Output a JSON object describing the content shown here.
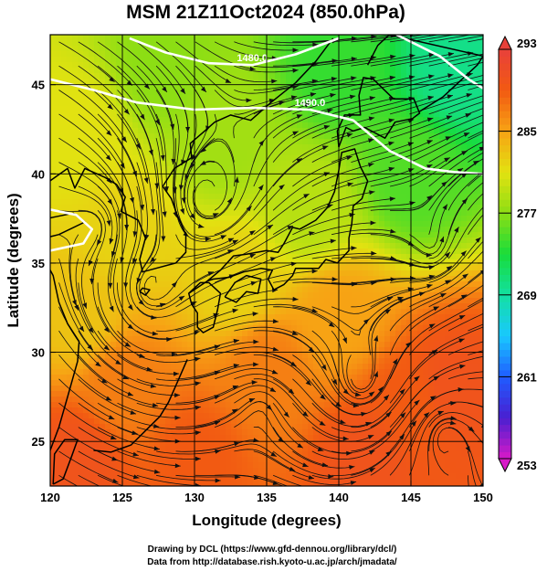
{
  "chart_data": {
    "type": "heatmap",
    "title": "MSM 21Z11Oct2024 (850.0hPa)",
    "xlabel": "Longitude (degrees)",
    "ylabel": "Latitude  (degrees)",
    "xlim": [
      120,
      150
    ],
    "ylim": [
      22.5,
      47.8
    ],
    "xticks": [
      "120",
      "125",
      "130",
      "135",
      "140",
      "145",
      "150"
    ],
    "yticks": [
      "25",
      "30",
      "35",
      "40",
      "45"
    ],
    "xtick_values": [
      120,
      125,
      130,
      135,
      140,
      145,
      150
    ],
    "ytick_values": [
      25,
      30,
      35,
      40,
      45
    ],
    "grid": true,
    "colorbar": {
      "position": "right",
      "min": 253,
      "max": 293,
      "tick_labels": [
        "293",
        "285",
        "277",
        "269",
        "261",
        "253"
      ],
      "tick_values": [
        293,
        285,
        277,
        269,
        261,
        253
      ],
      "colors": [
        "#d81ac8",
        "#4a1fd0",
        "#1f5cff",
        "#19c8ff",
        "#13e0a2",
        "#18dc3a",
        "#8cde14",
        "#e2e211",
        "#f7a314",
        "#f25a12",
        "#e8413a"
      ]
    },
    "field_description": "temperature (K) with streamlines and contours",
    "temperature_samples": [
      {
        "lon": 148,
        "lat": 46,
        "value": 270
      },
      {
        "lon": 140,
        "lat": 46,
        "value": 274
      },
      {
        "lon": 128,
        "lat": 46,
        "value": 277
      },
      {
        "lon": 132,
        "lat": 42,
        "value": 278
      },
      {
        "lon": 122,
        "lat": 42,
        "value": 281
      },
      {
        "lon": 145,
        "lat": 40,
        "value": 275
      },
      {
        "lon": 138,
        "lat": 38,
        "value": 279
      },
      {
        "lon": 125,
        "lat": 37,
        "value": 282
      },
      {
        "lon": 133,
        "lat": 34,
        "value": 282
      },
      {
        "lon": 122,
        "lat": 32,
        "value": 283
      },
      {
        "lon": 140,
        "lat": 32,
        "value": 285
      },
      {
        "lon": 135,
        "lat": 29,
        "value": 287
      },
      {
        "lon": 125,
        "lat": 28,
        "value": 287
      },
      {
        "lon": 145,
        "lat": 27,
        "value": 289
      },
      {
        "lon": 148,
        "lat": 28,
        "value": 290
      },
      {
        "lon": 130,
        "lat": 24,
        "value": 289
      },
      {
        "lon": 122,
        "lat": 24,
        "value": 290
      },
      {
        "lon": 142,
        "lat": 24,
        "value": 290
      }
    ],
    "contours": [
      {
        "label": "1480.0",
        "points": [
          [
            125.5,
            47.6
          ],
          [
            128,
            46.8
          ],
          [
            131,
            46.2
          ],
          [
            134,
            46.1
          ],
          [
            137,
            46.7
          ],
          [
            140,
            47.6
          ]
        ]
      },
      {
        "label": "1490.0",
        "points": [
          [
            120,
            45.3
          ],
          [
            123,
            44.7
          ],
          [
            126,
            44.0
          ],
          [
            130,
            43.6
          ],
          [
            134,
            43.7
          ],
          [
            138,
            43.6
          ],
          [
            141,
            43.0
          ],
          [
            143.5,
            41.3
          ],
          [
            146,
            40.3
          ],
          [
            148,
            40.1
          ],
          [
            150,
            40.0
          ]
        ]
      },
      {
        "label": "",
        "points": [
          [
            144,
            47.8
          ],
          [
            147,
            46.6
          ],
          [
            149,
            45.3
          ],
          [
            150,
            44.8
          ]
        ]
      },
      {
        "label": "",
        "points": [
          [
            120,
            38.0
          ],
          [
            121.8,
            37.7
          ],
          [
            122.9,
            36.9
          ],
          [
            122.3,
            36.1
          ],
          [
            120,
            35.7
          ]
        ]
      }
    ],
    "coastlines": [
      {
        "name": "korea-china",
        "points": [
          [
            120,
            24.5
          ],
          [
            120.6,
            25.8
          ],
          [
            121.2,
            27.5
          ],
          [
            121.9,
            29.5
          ],
          [
            122.0,
            30.6
          ],
          [
            121.2,
            31.6
          ],
          [
            120.6,
            32.8
          ],
          [
            120.2,
            34.3
          ],
          [
            119.6,
            35.2
          ],
          [
            119.6,
            36.4
          ],
          [
            120.6,
            36.6
          ],
          [
            122.4,
            37.3
          ],
          [
            121.6,
            37.8
          ],
          [
            120.4,
            37.6
          ],
          [
            119.2,
            37.4
          ],
          [
            118.9,
            38.4
          ],
          [
            119.8,
            39.5
          ],
          [
            121.2,
            40.3
          ],
          [
            121.7,
            39.2
          ],
          [
            122.4,
            40.3
          ],
          [
            123.8,
            39.8
          ],
          [
            124.6,
            39.4
          ],
          [
            125.2,
            38.7
          ],
          [
            124.9,
            37.9
          ],
          [
            126.1,
            37.4
          ],
          [
            126.6,
            36.4
          ],
          [
            126.2,
            35.2
          ],
          [
            126.4,
            34.5
          ],
          [
            127.3,
            34.7
          ],
          [
            128.7,
            35.0
          ],
          [
            129.4,
            35.6
          ],
          [
            129.4,
            36.6
          ],
          [
            128.8,
            37.7
          ],
          [
            128.4,
            38.6
          ],
          [
            127.8,
            39.3
          ],
          [
            128.6,
            40.3
          ],
          [
            129.8,
            40.9
          ],
          [
            129.7,
            41.7
          ],
          [
            130.7,
            42.4
          ],
          [
            131.4,
            42.9
          ],
          [
            132.5,
            43.3
          ],
          [
            133.9,
            43.0
          ],
          [
            135.3,
            44.0
          ],
          [
            137.0,
            45.1
          ],
          [
            138.4,
            46.3
          ],
          [
            139.6,
            47.6
          ]
        ]
      },
      {
        "name": "japan-main",
        "points": [
          [
            129.6,
            33.3
          ],
          [
            130.4,
            33.9
          ],
          [
            131.0,
            33.9
          ],
          [
            131.8,
            33.3
          ],
          [
            131.6,
            32.4
          ],
          [
            131.3,
            31.4
          ],
          [
            130.6,
            31.1
          ],
          [
            130.2,
            31.4
          ],
          [
            130.2,
            32.2
          ],
          [
            129.8,
            32.7
          ],
          [
            129.6,
            33.3
          ],
          [
            130.9,
            34.0
          ],
          [
            131.8,
            34.6
          ],
          [
            132.7,
            35.4
          ],
          [
            133.6,
            35.5
          ],
          [
            135.0,
            35.7
          ],
          [
            135.8,
            35.6
          ],
          [
            136.2,
            36.1
          ],
          [
            136.8,
            37.0
          ],
          [
            137.3,
            36.9
          ],
          [
            138.4,
            37.4
          ],
          [
            139.2,
            38.1
          ],
          [
            139.7,
            39.0
          ],
          [
            140.0,
            40.2
          ],
          [
            140.2,
            41.2
          ],
          [
            141.1,
            41.4
          ],
          [
            141.5,
            40.4
          ],
          [
            142.0,
            39.6
          ],
          [
            141.6,
            38.6
          ],
          [
            141.0,
            38.2
          ],
          [
            140.9,
            37.2
          ],
          [
            140.7,
            36.4
          ],
          [
            140.7,
            35.7
          ],
          [
            139.9,
            35.0
          ],
          [
            139.1,
            35.2
          ],
          [
            138.6,
            34.7
          ],
          [
            137.9,
            34.7
          ],
          [
            137.0,
            34.7
          ],
          [
            136.8,
            34.3
          ],
          [
            136.2,
            33.8
          ],
          [
            135.5,
            33.5
          ],
          [
            135.1,
            34.1
          ],
          [
            135.4,
            34.6
          ],
          [
            134.6,
            34.7
          ],
          [
            133.4,
            34.5
          ],
          [
            132.4,
            34.2
          ],
          [
            131.3,
            34.1
          ],
          [
            130.9,
            34.0
          ]
        ]
      },
      {
        "name": "shikoku",
        "points": [
          [
            132.1,
            33.1
          ],
          [
            132.9,
            32.8
          ],
          [
            133.6,
            33.4
          ],
          [
            134.4,
            33.3
          ],
          [
            134.6,
            34.1
          ],
          [
            133.6,
            34.3
          ],
          [
            132.8,
            33.9
          ],
          [
            132.1,
            33.1
          ]
        ]
      },
      {
        "name": "hokkaido",
        "points": [
          [
            140.0,
            41.5
          ],
          [
            140.5,
            42.6
          ],
          [
            141.0,
            42.4
          ],
          [
            141.8,
            42.6
          ],
          [
            143.2,
            42.0
          ],
          [
            143.9,
            42.9
          ],
          [
            145.1,
            43.1
          ],
          [
            145.6,
            43.4
          ],
          [
            145.2,
            44.2
          ],
          [
            143.8,
            44.2
          ],
          [
            142.4,
            45.3
          ],
          [
            141.7,
            45.4
          ],
          [
            141.4,
            44.4
          ],
          [
            141.5,
            43.3
          ],
          [
            140.4,
            43.3
          ],
          [
            139.9,
            42.4
          ],
          [
            140.0,
            41.5
          ]
        ]
      },
      {
        "name": "kuril-sakhalin",
        "points": [
          [
            145.6,
            43.5
          ],
          [
            147.2,
            44.3
          ],
          [
            148.4,
            45.2
          ],
          [
            149.6,
            46.1
          ],
          [
            150,
            46.6
          ],
          [
            143.5,
            47.8
          ],
          [
            142.7,
            47.2
          ],
          [
            142.0,
            46.1
          ]
        ]
      },
      {
        "name": "ryukyu",
        "points": [
          [
            129.5,
            29.6
          ],
          [
            128.8,
            28.3
          ],
          [
            128.2,
            27.2
          ],
          [
            127.6,
            26.4
          ],
          [
            125.6,
            24.8
          ],
          [
            124.2,
            24.4
          ],
          [
            123.0,
            24.5
          ]
        ]
      },
      {
        "name": "jeju",
        "points": [
          [
            126.2,
            33.4
          ],
          [
            126.6,
            33.2
          ],
          [
            126.9,
            33.5
          ],
          [
            126.4,
            33.6
          ],
          [
            126.2,
            33.4
          ]
        ]
      },
      {
        "name": "taiwan",
        "points": [
          [
            120.2,
            22.6
          ],
          [
            120.9,
            22.9
          ],
          [
            121.5,
            24.2
          ],
          [
            121.9,
            25.1
          ],
          [
            121.0,
            25.1
          ],
          [
            120.3,
            24.3
          ],
          [
            120.2,
            22.6
          ]
        ]
      }
    ]
  },
  "credits": {
    "line1": "Drawing by DCL (https://www.gfd-dennou.org/library/dcl/)",
    "line2": "Data from http://database.rish.kyoto-u.ac.jp/arch/jmadata/"
  }
}
